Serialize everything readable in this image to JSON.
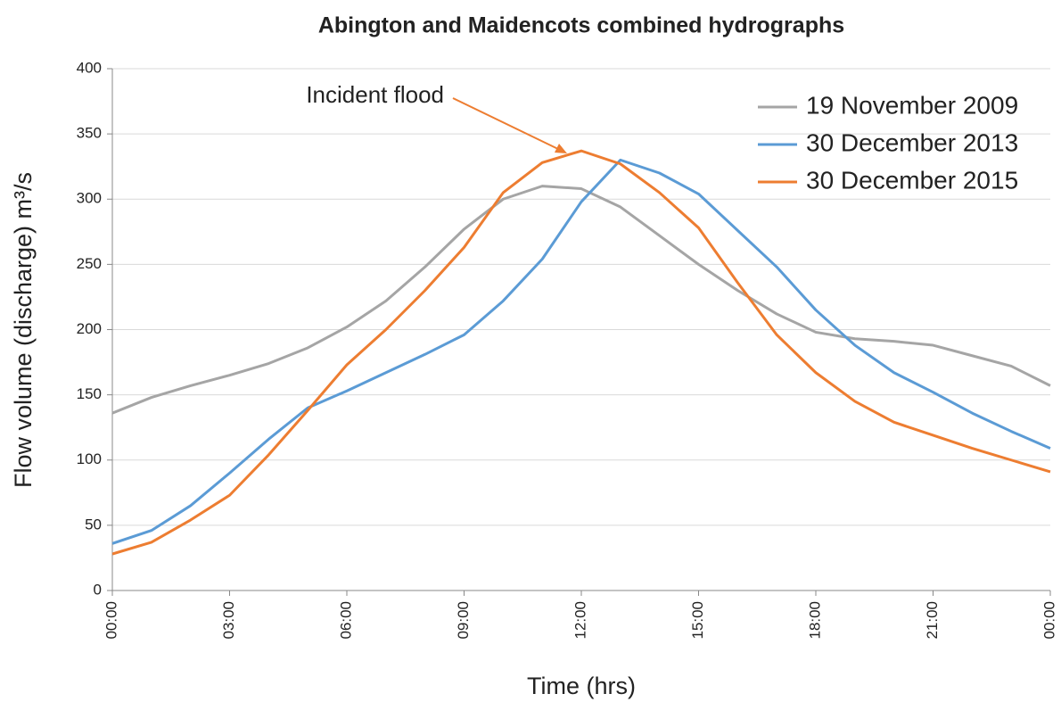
{
  "chart_data": {
    "type": "line",
    "title": "Abington and Maidencots combined hydrographs",
    "x_label": "Time (hrs)",
    "y_label": "Flow volume (discharge) m³/s",
    "annotation": "Incident flood",
    "x": [
      0,
      1,
      2,
      3,
      4,
      5,
      6,
      7,
      8,
      9,
      10,
      11,
      12,
      13,
      14,
      15,
      16,
      17,
      18,
      19,
      20,
      21,
      22,
      23,
      24
    ],
    "series": [
      {
        "name": "19 November 2009",
        "color": "#a5a5a5",
        "values": [
          136,
          148,
          157,
          165,
          174,
          186,
          202,
          222,
          248,
          277,
          300,
          310,
          308,
          294,
          272,
          250,
          230,
          212,
          198,
          193,
          191,
          188,
          180,
          172,
          157
        ]
      },
      {
        "name": "30 December 2013",
        "color": "#5b9bd5",
        "values": [
          36,
          46,
          65,
          90,
          116,
          140,
          153,
          167,
          181,
          196,
          222,
          254,
          298,
          330,
          320,
          304,
          276,
          248,
          215,
          188,
          167,
          152,
          136,
          122,
          109
        ]
      },
      {
        "name": "30 December 2015",
        "color": "#ed7d31",
        "values": [
          28,
          37,
          54,
          73,
          104,
          138,
          173,
          200,
          230,
          263,
          305,
          328,
          337,
          327,
          305,
          278,
          236,
          196,
          167,
          145,
          129,
          119,
          109,
          100,
          91
        ]
      }
    ],
    "xlim": [
      0,
      24
    ],
    "xticks": [
      {
        "value": 0,
        "label": "00:00"
      },
      {
        "value": 3,
        "label": "03:00"
      },
      {
        "value": 6,
        "label": "06:00"
      },
      {
        "value": 9,
        "label": "09:00"
      },
      {
        "value": 12,
        "label": "12:00"
      },
      {
        "value": 15,
        "label": "15:00"
      },
      {
        "value": 18,
        "label": "18:00"
      },
      {
        "value": 21,
        "label": "21:00"
      },
      {
        "value": 24,
        "label": "00:00"
      }
    ],
    "ylim": [
      0,
      400
    ],
    "yticks": [
      0,
      50,
      100,
      150,
      200,
      250,
      300,
      350,
      400
    ],
    "grid": true,
    "legend": "upper right"
  }
}
